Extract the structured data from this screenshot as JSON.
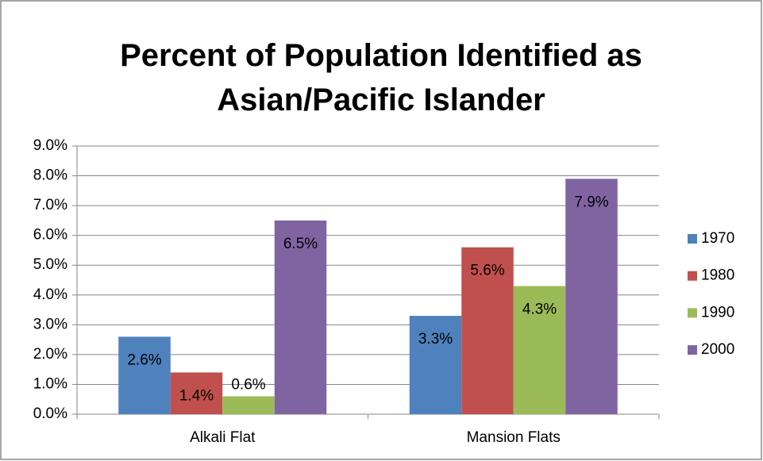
{
  "chart_data": {
    "type": "bar",
    "title": "Percent of Population Identified as Asian/Pacific Islander",
    "categories": [
      "Alkali Flat",
      "Mansion Flats"
    ],
    "series": [
      {
        "name": "1970",
        "color": "#4f81bd",
        "values": [
          2.6,
          3.3
        ],
        "value_labels": [
          "2.6%",
          "3.3%"
        ]
      },
      {
        "name": "1980",
        "color": "#c0504d",
        "values": [
          1.4,
          5.6
        ],
        "value_labels": [
          "1.4%",
          "5.6%"
        ]
      },
      {
        "name": "1990",
        "color": "#9bbb59",
        "values": [
          0.6,
          4.3
        ],
        "value_labels": [
          "0.6%",
          "4.3%"
        ]
      },
      {
        "name": "2000",
        "color": "#8064a2",
        "values": [
          6.5,
          7.9
        ],
        "value_labels": [
          "6.5%",
          "7.9%"
        ]
      }
    ],
    "ylim": [
      0,
      9
    ],
    "yticks": [
      {
        "value": 0,
        "label": "0.0%"
      },
      {
        "value": 1,
        "label": "1.0%"
      },
      {
        "value": 2,
        "label": "2.0%"
      },
      {
        "value": 3,
        "label": "3.0%"
      },
      {
        "value": 4,
        "label": "4.0%"
      },
      {
        "value": 5,
        "label": "5.0%"
      },
      {
        "value": 6,
        "label": "6.0%"
      },
      {
        "value": 7,
        "label": "7.0%"
      },
      {
        "value": 8,
        "label": "8.0%"
      },
      {
        "value": 9,
        "label": "9.0%"
      }
    ],
    "grid": true,
    "legend": "right"
  }
}
